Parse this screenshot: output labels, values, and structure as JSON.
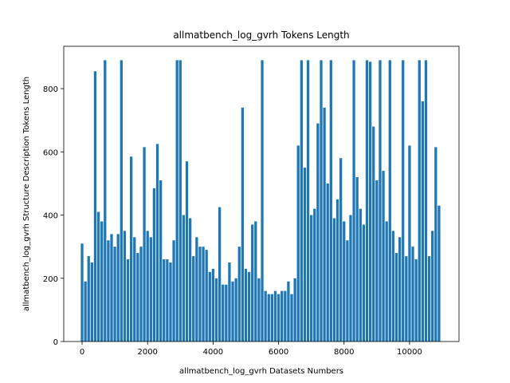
{
  "chart_data": {
    "type": "bar",
    "title": "allmatbench_log_gvrh Tokens Length",
    "xlabel": "allmatbench_log_gvrh Datasets Numbers",
    "ylabel": "allmatbench_log_gvrh Structure Description Tokens Length",
    "color": "#1f77b4",
    "x": [
      0,
      100,
      200,
      300,
      400,
      500,
      600,
      700,
      800,
      900,
      1000,
      1100,
      1200,
      1300,
      1400,
      1500,
      1600,
      1700,
      1800,
      1900,
      2000,
      2100,
      2200,
      2300,
      2400,
      2500,
      2600,
      2700,
      2800,
      2900,
      3000,
      3100,
      3200,
      3300,
      3400,
      3500,
      3600,
      3700,
      3800,
      3900,
      4000,
      4100,
      4200,
      4300,
      4400,
      4500,
      4600,
      4700,
      4800,
      4900,
      5000,
      5100,
      5200,
      5300,
      5400,
      5500,
      5600,
      5700,
      5800,
      5900,
      6000,
      6100,
      6200,
      6300,
      6400,
      6500,
      6600,
      6700,
      6800,
      6900,
      7000,
      7100,
      7200,
      7300,
      7400,
      7500,
      7600,
      7700,
      7800,
      7900,
      8000,
      8100,
      8200,
      8300,
      8400,
      8500,
      8600,
      8700,
      8800,
      8900,
      9000,
      9100,
      9200,
      9300,
      9400,
      9500,
      9600,
      9700,
      9800,
      9900,
      10000,
      10100,
      10200,
      10300,
      10400,
      10500,
      10600,
      10700,
      10800,
      10900
    ],
    "values": [
      310,
      190,
      270,
      250,
      855,
      410,
      380,
      890,
      320,
      340,
      300,
      340,
      890,
      350,
      260,
      585,
      330,
      280,
      300,
      615,
      350,
      330,
      485,
      625,
      510,
      260,
      260,
      250,
      320,
      890,
      890,
      400,
      570,
      390,
      270,
      330,
      300,
      300,
      290,
      220,
      230,
      200,
      425,
      180,
      180,
      250,
      190,
      200,
      300,
      740,
      230,
      220,
      370,
      380,
      200,
      890,
      160,
      150,
      150,
      160,
      150,
      160,
      160,
      190,
      150,
      200,
      620,
      890,
      550,
      890,
      400,
      420,
      690,
      890,
      740,
      500,
      890,
      390,
      450,
      580,
      380,
      320,
      400,
      890,
      520,
      420,
      370,
      890,
      885,
      680,
      510,
      890,
      540,
      380,
      890,
      350,
      280,
      330,
      890,
      270,
      620,
      300,
      260,
      890,
      760,
      890,
      270,
      350,
      615,
      430
    ],
    "xlim": [
      -560,
      11510
    ],
    "ylim": [
      0,
      934
    ],
    "xticks": [
      0,
      2000,
      4000,
      6000,
      8000,
      10000
    ],
    "yticks": [
      0,
      200,
      400,
      600,
      800
    ]
  }
}
